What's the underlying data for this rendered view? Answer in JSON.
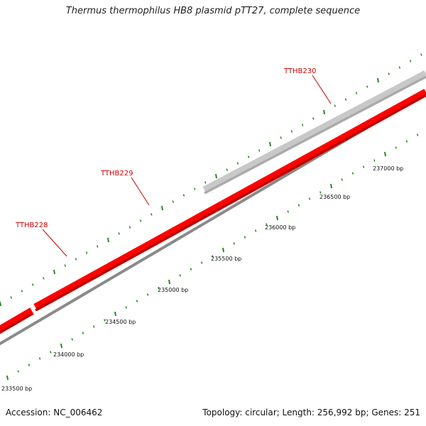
{
  "title": "Thermus thermophilus HB8 plasmid pTT27, complete sequence",
  "footer": {
    "accession": "Accession: NC_006462",
    "summary": "Topology: circular; Length: 256,992 bp; Genes: 251"
  },
  "colors": {
    "forward_gene": "#ff0000",
    "reverse_gene": "#c8c8c8",
    "backbone": "#8a8a8a",
    "tick": "#228b22",
    "label": "#cc0000"
  },
  "scale": {
    "ticks_bp": [
      233500,
      234000,
      234500,
      235000,
      235500,
      236000,
      236500,
      237000
    ],
    "tick_labels": [
      "233500 bp",
      "234000 bp",
      "234500 bp",
      "235000 bp",
      "235500 bp",
      "236000 bp",
      "236500 bp",
      "237000 bp"
    ]
  },
  "genes": [
    {
      "name": "TTHB228",
      "strand": "forward"
    },
    {
      "name": "TTHB229",
      "strand": "forward"
    },
    {
      "name": "TTHB230",
      "strand": "reverse"
    }
  ]
}
